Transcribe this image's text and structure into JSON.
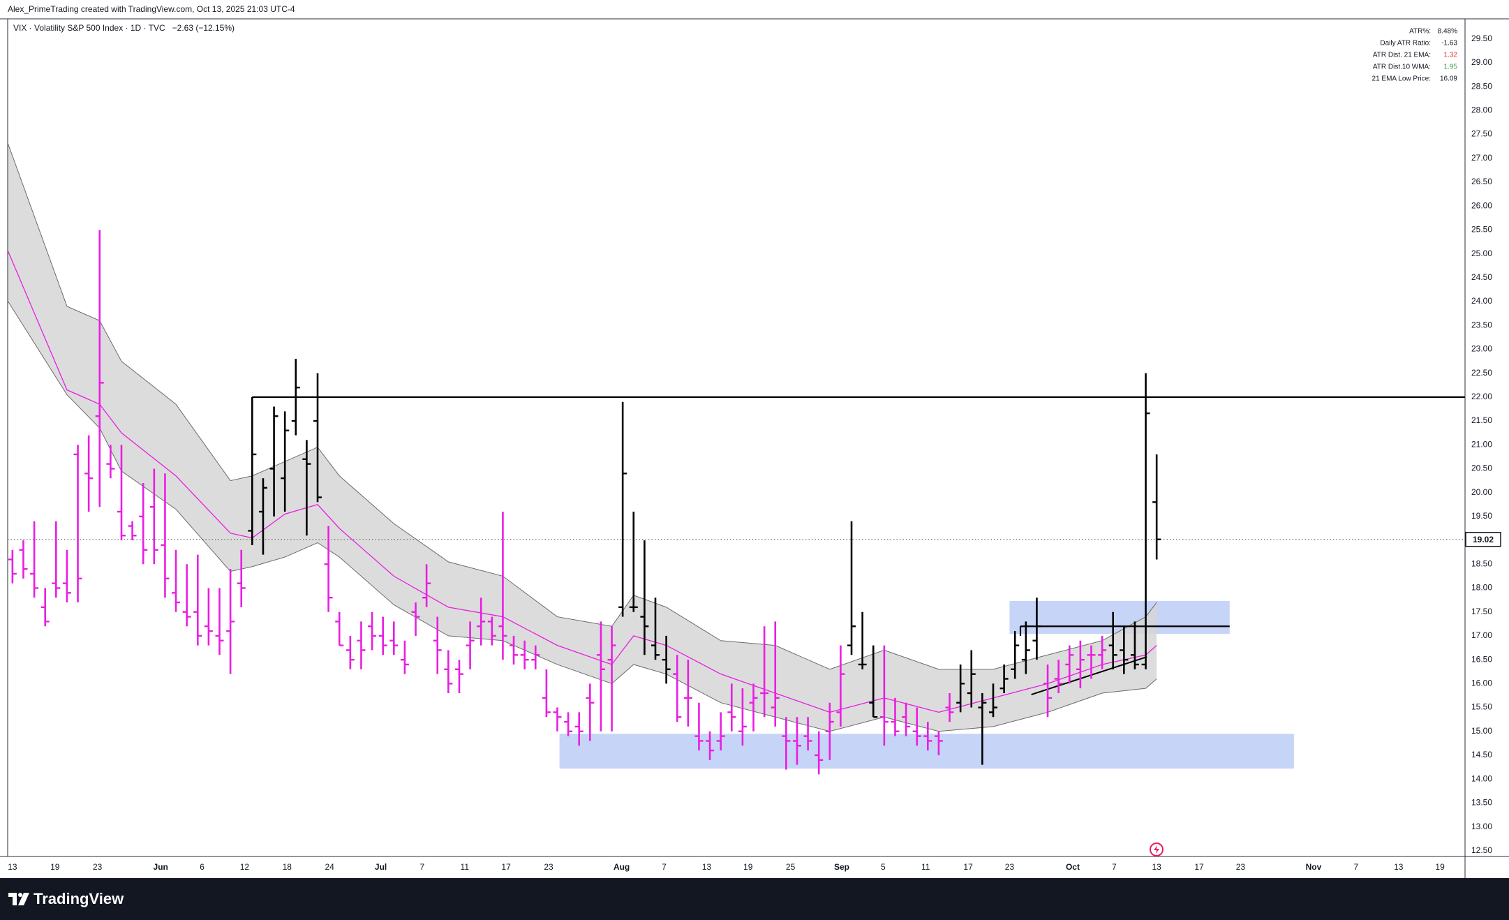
{
  "header": "Alex_PrimeTrading created with TradingView.com, Oct 13, 2025 21:03 UTC-4",
  "footer_logo": "TradingView",
  "chart_data": {
    "type": "ohlc",
    "legend_text": "VIX · Volatility S&P 500 Index · 1D · TVC",
    "change": "−2.63 (−12.15%)",
    "xlim": [
      -0.44,
      133.3
    ],
    "xticks": [
      {
        "value": 0,
        "label": "13"
      },
      {
        "value": 3.9,
        "label": "19"
      },
      {
        "value": 7.8,
        "label": "23"
      },
      {
        "value": 13.6,
        "label": "Jun"
      },
      {
        "value": 17.4,
        "label": "6"
      },
      {
        "value": 21.3,
        "label": "12"
      },
      {
        "value": 25.2,
        "label": "18"
      },
      {
        "value": 29.1,
        "label": "24"
      },
      {
        "value": 33.8,
        "label": "Jul"
      },
      {
        "value": 37.6,
        "label": "7"
      },
      {
        "value": 41.5,
        "label": "11"
      },
      {
        "value": 45.3,
        "label": "17"
      },
      {
        "value": 49.2,
        "label": "23"
      },
      {
        "value": 55.9,
        "label": "Aug"
      },
      {
        "value": 59.8,
        "label": "7"
      },
      {
        "value": 63.7,
        "label": "13"
      },
      {
        "value": 67.5,
        "label": "19"
      },
      {
        "value": 71.4,
        "label": "25"
      },
      {
        "value": 76.1,
        "label": "Sep"
      },
      {
        "value": 79.9,
        "label": "5"
      },
      {
        "value": 83.8,
        "label": "11"
      },
      {
        "value": 87.7,
        "label": "17"
      },
      {
        "value": 91.5,
        "label": "23"
      },
      {
        "value": 97.3,
        "label": "Oct"
      },
      {
        "value": 101.1,
        "label": "7"
      },
      {
        "value": 105,
        "label": "13"
      },
      {
        "value": 108.9,
        "label": "17"
      },
      {
        "value": 112.7,
        "label": "23"
      },
      {
        "value": 119.4,
        "label": "Nov"
      },
      {
        "value": 123.3,
        "label": "7"
      },
      {
        "value": 127.2,
        "label": "13"
      },
      {
        "value": 131.0,
        "label": "19"
      }
    ],
    "ylim": [
      12.38,
      29.92
    ],
    "yticks": [
      {
        "value": 12.5,
        "label": "12.50"
      },
      {
        "value": 13,
        "label": "13.00"
      },
      {
        "value": 13.5,
        "label": "13.50"
      },
      {
        "value": 14,
        "label": "14.00"
      },
      {
        "value": 14.5,
        "label": "14.50"
      },
      {
        "value": 15,
        "label": "15.00"
      },
      {
        "value": 15.5,
        "label": "15.50"
      },
      {
        "value": 16,
        "label": "16.00"
      },
      {
        "value": 16.5,
        "label": "16.50"
      },
      {
        "value": 17,
        "label": "17.00"
      },
      {
        "value": 17.5,
        "label": "17.50"
      },
      {
        "value": 18,
        "label": "18.00"
      },
      {
        "value": 18.5,
        "label": "18.50"
      },
      {
        "value": 19,
        "label": "19.00"
      },
      {
        "value": 19.5,
        "label": "19.50"
      },
      {
        "value": 20,
        "label": "20.00"
      },
      {
        "value": 20.5,
        "label": "20.50"
      },
      {
        "value": 21,
        "label": "21.00"
      },
      {
        "value": 21.5,
        "label": "21.50"
      },
      {
        "value": 22,
        "label": "22.00"
      },
      {
        "value": 22.5,
        "label": "22.50"
      },
      {
        "value": 23,
        "label": "23.00"
      },
      {
        "value": 23.5,
        "label": "23.50"
      },
      {
        "value": 24,
        "label": "24.00"
      },
      {
        "value": 24.5,
        "label": "24.50"
      },
      {
        "value": 25,
        "label": "25.00"
      },
      {
        "value": 25.5,
        "label": "25.50"
      },
      {
        "value": 26,
        "label": "26.00"
      },
      {
        "value": 26.5,
        "label": "26.50"
      },
      {
        "value": 27,
        "label": "27.00"
      },
      {
        "value": 27.5,
        "label": "27.50"
      },
      {
        "value": 28,
        "label": "28.00"
      },
      {
        "value": 28.5,
        "label": "28.50"
      },
      {
        "value": 29,
        "label": "29.00"
      },
      {
        "value": 29.5,
        "label": "29.50"
      }
    ],
    "grid": false,
    "ohlc": {
      "open": [
        18.6,
        18.8,
        18.3,
        17.6,
        18.1,
        18.1,
        20.8,
        20.4,
        21.6,
        20.6,
        19.6,
        19.3,
        19.5,
        19.7,
        18.9,
        17.9,
        17.5,
        17.5,
        17.2,
        17.0,
        17.1,
        18.1,
        19.2,
        19.6,
        20.5,
        20.3,
        21.5,
        20.7,
        21.5,
        18.5,
        17.3,
        16.7,
        16.9,
        17.2,
        17.0,
        16.9,
        16.5,
        17.5,
        17.8,
        16.9,
        16.3,
        16.3,
        16.8,
        17.2,
        17.3,
        17.2,
        16.8,
        16.6,
        16.5,
        15.7,
        15.4,
        15.2,
        15.1,
        15.7,
        16.6,
        16.5,
        17.6,
        17.6,
        17.4,
        16.8,
        16.5,
        16.2,
        15.7,
        14.9,
        14.8,
        14.8,
        15.4,
        15.0,
        15.6,
        15.8,
        15.5,
        14.9,
        14.8,
        14.9,
        14.5,
        15.0,
        15.4,
        16.8,
        16.4,
        15.6,
        15.3,
        15.2,
        15.3,
        15.0,
        14.9,
        14.9,
        15.5,
        15.6,
        15.8,
        15.5,
        15.4,
        15.9,
        16.3,
        16.5,
        16.9,
        16.0,
        16.1,
        16.4,
        16.3,
        16.6,
        16.6,
        16.8,
        16.7,
        16.6,
        16.4,
        19.8
      ],
      "high": [
        18.8,
        19.0,
        19.4,
        18.0,
        19.4,
        18.8,
        21.0,
        21.2,
        25.5,
        21.0,
        21.0,
        19.4,
        20.2,
        20.5,
        20.4,
        18.8,
        18.5,
        18.7,
        18.0,
        18.0,
        18.4,
        18.8,
        22.0,
        20.3,
        21.8,
        21.7,
        22.8,
        21.1,
        22.5,
        19.3,
        17.5,
        17.0,
        17.3,
        17.5,
        17.4,
        17.3,
        16.9,
        17.7,
        18.5,
        17.4,
        16.7,
        16.5,
        17.3,
        17.8,
        17.4,
        19.6,
        17.0,
        16.9,
        16.8,
        16.3,
        15.5,
        15.4,
        15.4,
        16.0,
        17.3,
        17.2,
        21.9,
        19.6,
        19.0,
        17.8,
        17.0,
        16.6,
        16.5,
        15.6,
        15.0,
        15.4,
        16.0,
        15.9,
        16.0,
        17.2,
        17.3,
        15.3,
        15.3,
        15.3,
        15.0,
        15.6,
        16.8,
        19.4,
        17.5,
        16.8,
        16.8,
        15.7,
        15.6,
        15.5,
        15.2,
        15.0,
        15.8,
        16.4,
        16.7,
        15.8,
        16.0,
        16.4,
        17.1,
        17.3,
        17.8,
        16.4,
        16.5,
        16.8,
        16.9,
        16.8,
        17.0,
        17.5,
        17.2,
        17.3,
        22.5,
        20.8
      ],
      "low": [
        18.1,
        18.2,
        17.8,
        17.2,
        17.8,
        17.7,
        17.7,
        19.6,
        19.7,
        20.3,
        19.0,
        19.0,
        18.5,
        18.5,
        17.8,
        17.5,
        17.2,
        16.8,
        16.8,
        16.6,
        16.2,
        17.6,
        18.9,
        18.7,
        19.5,
        19.6,
        21.2,
        19.1,
        19.8,
        17.5,
        16.8,
        16.3,
        16.3,
        16.7,
        16.6,
        16.6,
        16.2,
        17.0,
        17.6,
        16.2,
        15.8,
        15.8,
        16.3,
        16.8,
        16.8,
        16.5,
        16.4,
        16.3,
        16.3,
        15.3,
        15.0,
        14.9,
        14.7,
        14.8,
        15.0,
        15.0,
        17.4,
        17.5,
        16.6,
        16.5,
        16.0,
        15.2,
        15.1,
        14.6,
        14.4,
        14.6,
        15.0,
        14.7,
        15.0,
        15.3,
        15.1,
        14.2,
        14.3,
        14.6,
        14.1,
        14.4,
        15.1,
        16.6,
        16.3,
        15.3,
        14.7,
        14.9,
        14.9,
        14.7,
        14.6,
        14.5,
        15.2,
        15.4,
        15.5,
        14.3,
        15.3,
        15.8,
        16.1,
        16.2,
        16.5,
        15.3,
        15.8,
        16.0,
        15.9,
        16.1,
        16.3,
        16.3,
        16.2,
        16.3,
        16.3,
        18.6
      ],
      "close": [
        18.3,
        18.4,
        18.0,
        17.3,
        18.0,
        17.9,
        18.2,
        20.3,
        22.3,
        20.5,
        19.1,
        19.1,
        18.8,
        18.8,
        18.2,
        17.7,
        17.4,
        17.0,
        17.1,
        16.9,
        17.3,
        18.0,
        20.8,
        20.1,
        21.6,
        21.3,
        22.2,
        20.6,
        19.9,
        17.8,
        16.8,
        16.5,
        16.7,
        17.0,
        16.8,
        16.8,
        16.4,
        17.4,
        18.1,
        16.7,
        16.0,
        16.2,
        16.9,
        17.3,
        17.0,
        17.0,
        16.6,
        16.5,
        16.6,
        15.4,
        15.3,
        15.0,
        15.0,
        15.6,
        16.3,
        16.8,
        20.4,
        17.6,
        17.2,
        16.6,
        16.3,
        15.3,
        15.7,
        14.8,
        14.6,
        14.9,
        15.3,
        15.1,
        15.7,
        15.8,
        15.7,
        14.8,
        14.7,
        14.8,
        14.4,
        15.2,
        16.2,
        17.2,
        16.4,
        15.3,
        15.2,
        15.0,
        15.1,
        14.9,
        14.8,
        14.8,
        15.4,
        16.0,
        16.2,
        15.6,
        15.5,
        16.1,
        16.8,
        16.7,
        17.2,
        15.7,
        16.0,
        16.6,
        16.5,
        16.6,
        16.7,
        16.6,
        16.5,
        16.4,
        21.66,
        19.02
      ],
      "colors": [
        "#e91ee3",
        "#e91ee3",
        "#e91ee3",
        "#e91ee3",
        "#e91ee3",
        "#e91ee3",
        "#e91ee3",
        "#e91ee3",
        "#e91ee3",
        "#e91ee3",
        "#e91ee3",
        "#e91ee3",
        "#e91ee3",
        "#e91ee3",
        "#e91ee3",
        "#e91ee3",
        "#e91ee3",
        "#e91ee3",
        "#e91ee3",
        "#e91ee3",
        "#e91ee3",
        "#e91ee3",
        "#000000",
        "#000000",
        "#000000",
        "#000000",
        "#000000",
        "#000000",
        "#000000",
        "#e91ee3",
        "#e91ee3",
        "#e91ee3",
        "#e91ee3",
        "#e91ee3",
        "#e91ee3",
        "#e91ee3",
        "#e91ee3",
        "#e91ee3",
        "#e91ee3",
        "#e91ee3",
        "#e91ee3",
        "#e91ee3",
        "#e91ee3",
        "#e91ee3",
        "#e91ee3",
        "#e91ee3",
        "#e91ee3",
        "#e91ee3",
        "#e91ee3",
        "#e91ee3",
        "#e91ee3",
        "#e91ee3",
        "#e91ee3",
        "#e91ee3",
        "#e91ee3",
        "#e91ee3",
        "#000000",
        "#000000",
        "#000000",
        "#000000",
        "#000000",
        "#e91ee3",
        "#e91ee3",
        "#e91ee3",
        "#e91ee3",
        "#e91ee3",
        "#e91ee3",
        "#e91ee3",
        "#e91ee3",
        "#e91ee3",
        "#e91ee3",
        "#e91ee3",
        "#e91ee3",
        "#e91ee3",
        "#e91ee3",
        "#e91ee3",
        "#e91ee3",
        "#000000",
        "#000000",
        "#000000",
        "#e91ee3",
        "#e91ee3",
        "#e91ee3",
        "#e91ee3",
        "#e91ee3",
        "#e91ee3",
        "#e91ee3",
        "#000000",
        "#000000",
        "#000000",
        "#000000",
        "#000000",
        "#000000",
        "#000000",
        "#000000",
        "#e91ee3",
        "#e91ee3",
        "#e91ee3",
        "#e91ee3",
        "#e91ee3",
        "#e91ee3",
        "#000000",
        "#000000",
        "#000000",
        "#000000",
        "#000000"
      ]
    },
    "band": {
      "fill": "#d6d6d6",
      "edge_color": "#6b6b6b",
      "middle_color": "#e91ee3",
      "x": [
        -0.4,
        5,
        8,
        10,
        15,
        20,
        22,
        25,
        28,
        30,
        35,
        40,
        45,
        50,
        55,
        57,
        60,
        65,
        70,
        75,
        80,
        85,
        90,
        95,
        100,
        104,
        105
      ],
      "upper": [
        27.3,
        23.9,
        23.6,
        22.75,
        21.85,
        20.25,
        20.35,
        20.65,
        20.95,
        20.35,
        19.35,
        18.55,
        18.25,
        17.4,
        17.2,
        17.85,
        17.6,
        16.9,
        16.8,
        16.3,
        16.7,
        16.3,
        16.3,
        16.6,
        16.9,
        17.4,
        17.7
      ],
      "middle": [
        25.05,
        22.15,
        21.85,
        21.25,
        20.35,
        19.15,
        19.05,
        19.55,
        19.75,
        19.25,
        18.25,
        17.6,
        17.4,
        16.8,
        16.4,
        17.0,
        16.8,
        16.2,
        15.8,
        15.4,
        15.7,
        15.4,
        15.7,
        16.0,
        16.4,
        16.6,
        16.8
      ],
      "lower": [
        24.0,
        22.05,
        21.35,
        20.45,
        19.65,
        18.35,
        18.45,
        18.65,
        18.95,
        18.65,
        17.65,
        17.0,
        16.9,
        16.4,
        16.0,
        16.4,
        16.2,
        15.6,
        15.3,
        15.0,
        15.3,
        15.0,
        15.1,
        15.4,
        15.8,
        15.9,
        16.1
      ]
    },
    "last_price": 19.02,
    "levels": [
      {
        "y": 22.0,
        "x": [
          22,
          133.3
        ],
        "drop_to": 19.0
      },
      {
        "y": 17.2,
        "x": [
          92.5,
          111.7
        ],
        "drop_to": 17.0
      }
    ],
    "trendlines": [
      {
        "x": [
          93.5,
          104.1
        ],
        "y": [
          15.77,
          16.56
        ]
      }
    ],
    "boxes": [
      {
        "x": [
          50.2,
          117.6
        ],
        "y": [
          14.22,
          14.95
        ],
        "color": "#bccdf6"
      },
      {
        "x": [
          91.5,
          111.7
        ],
        "y": [
          17.04,
          17.73
        ],
        "color": "#bccdf6"
      }
    ],
    "info_table": {
      "rows": [
        [
          "ATR%:",
          "8.48%"
        ],
        [
          "Daily ATR Ratio:",
          "-1.63"
        ],
        [
          "ATR Dist. 21 EMA:",
          "1.32"
        ],
        [
          "ATR Dist.10 WMA:",
          "1.95"
        ],
        [
          "21 EMA Low Price:",
          "16.09"
        ]
      ],
      "value_colors": [
        "#131722",
        "#131722",
        "#e53935",
        "#43a047",
        "#131722"
      ]
    }
  }
}
